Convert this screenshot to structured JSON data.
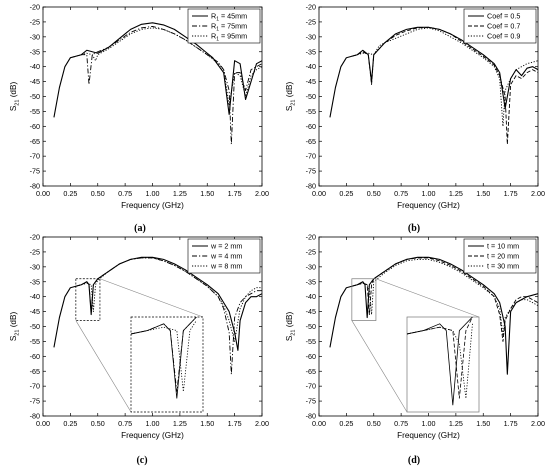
{
  "chart_data": [
    {
      "type": "line",
      "panel_label": "(a)",
      "xlabel": "Frequency (GHz)",
      "ylabel": "S21 (dB)",
      "xlim": [
        0.0,
        2.0
      ],
      "ylim": [
        -80,
        -20
      ],
      "xticks": [
        "0.00",
        "0.25",
        "0.50",
        "0.75",
        "1.00",
        "1.25",
        "1.50",
        "1.75",
        "2.00"
      ],
      "yticks": [
        "-20",
        "-25",
        "-30",
        "-35",
        "-40",
        "-45",
        "-50",
        "-55",
        "-60",
        "-65",
        "-70",
        "-75",
        "-80"
      ],
      "legend_position": "top-right",
      "series": [
        {
          "name": "R1 = 45mm",
          "style": "solid",
          "x": [
            0.1,
            0.15,
            0.2,
            0.25,
            0.3,
            0.35,
            0.4,
            0.45,
            0.5,
            0.6,
            0.7,
            0.8,
            0.9,
            1.0,
            1.1,
            1.2,
            1.3,
            1.4,
            1.5,
            1.55,
            1.6,
            1.65,
            1.7,
            1.75,
            1.8,
            1.85,
            1.9,
            1.95,
            2.0
          ],
          "y": [
            -57,
            -47,
            -40,
            -37,
            -36.5,
            -36,
            -34.5,
            -35,
            -35.5,
            -33.5,
            -30.5,
            -27.5,
            -25.8,
            -25.3,
            -26,
            -27.5,
            -30,
            -32.5,
            -35.5,
            -37,
            -39.5,
            -42,
            -56,
            -38,
            -39,
            -51,
            -45,
            -39,
            -38
          ]
        },
        {
          "name": "R1 = 75mm",
          "style": "dash-dot",
          "x": [
            0.25,
            0.3,
            0.35,
            0.4,
            0.42,
            0.45,
            0.5,
            0.6,
            0.7,
            0.8,
            0.9,
            1.0,
            1.1,
            1.2,
            1.3,
            1.4,
            1.5,
            1.6,
            1.65,
            1.7,
            1.72,
            1.75,
            1.8,
            1.85,
            1.9,
            1.95,
            2.0
          ],
          "y": [
            -37,
            -36.5,
            -36,
            -36,
            -46,
            -36,
            -35,
            -33.5,
            -31,
            -28.5,
            -27,
            -26.5,
            -27.5,
            -29,
            -31,
            -33.5,
            -36,
            -38.5,
            -41,
            -48,
            -66,
            -42,
            -42,
            -48,
            -41,
            -40,
            -39
          ]
        },
        {
          "name": "R1 = 95mm",
          "style": "dot",
          "x": [
            0.25,
            0.3,
            0.35,
            0.4,
            0.45,
            0.48,
            0.5,
            0.55,
            0.6,
            0.7,
            0.8,
            0.9,
            1.0,
            1.1,
            1.2,
            1.3,
            1.4,
            1.5,
            1.6,
            1.65,
            1.7,
            1.75,
            1.8,
            1.85,
            1.9,
            1.95,
            2.0
          ],
          "y": [
            -37,
            -36.5,
            -36,
            -35.5,
            -36,
            -38,
            -36,
            -35,
            -34,
            -31.5,
            -29,
            -27.5,
            -27,
            -27.5,
            -29,
            -31,
            -33.5,
            -36,
            -39,
            -41,
            -53,
            -42,
            -43,
            -50,
            -43,
            -41,
            -40
          ]
        }
      ]
    },
    {
      "type": "line",
      "panel_label": "(b)",
      "xlabel": "Frequency (GHz)",
      "ylabel": "S21 (dB)",
      "xlim": [
        0.0,
        2.0
      ],
      "ylim": [
        -80,
        -20
      ],
      "xticks": [
        "0.00",
        "0.25",
        "0.50",
        "0.75",
        "1.00",
        "1.25",
        "1.50",
        "1.75",
        "2.00"
      ],
      "yticks": [
        "-20",
        "-25",
        "-30",
        "-35",
        "-40",
        "-45",
        "-50",
        "-55",
        "-60",
        "-65",
        "-70",
        "-75",
        "-80"
      ],
      "legend_position": "top-right",
      "series": [
        {
          "name": "Coef = 0.5",
          "style": "solid",
          "x": [
            0.1,
            0.15,
            0.2,
            0.25,
            0.3,
            0.35,
            0.4,
            0.45,
            0.48,
            0.5,
            0.6,
            0.7,
            0.8,
            0.9,
            1.0,
            1.1,
            1.2,
            1.3,
            1.4,
            1.5,
            1.6,
            1.65,
            1.7,
            1.75,
            1.8,
            1.85,
            1.9,
            1.95,
            2.0
          ],
          "y": [
            -57,
            -47,
            -40,
            -37,
            -36.5,
            -36,
            -34.5,
            -36,
            -45,
            -36,
            -32,
            -29,
            -27.5,
            -26.8,
            -26.8,
            -27.5,
            -29,
            -31,
            -33.5,
            -36,
            -39,
            -42,
            -54,
            -44,
            -41,
            -43,
            -40.5,
            -40,
            -41
          ]
        },
        {
          "name": "Coef = 0.7",
          "style": "dash",
          "x": [
            0.3,
            0.35,
            0.4,
            0.45,
            0.48,
            0.5,
            0.6,
            0.7,
            0.8,
            0.9,
            1.0,
            1.1,
            1.2,
            1.3,
            1.4,
            1.5,
            1.6,
            1.65,
            1.7,
            1.72,
            1.75,
            1.8,
            1.85,
            1.9,
            1.95,
            2.0
          ],
          "y": [
            -36.5,
            -36,
            -35,
            -36,
            -46,
            -36,
            -32,
            -29.5,
            -28,
            -27,
            -26.8,
            -27.5,
            -29,
            -31.5,
            -34,
            -36.5,
            -39.5,
            -43,
            -50,
            -66,
            -46,
            -43,
            -44,
            -42,
            -41,
            -42
          ]
        },
        {
          "name": "Coef = 0.9",
          "style": "dot",
          "x": [
            0.3,
            0.35,
            0.4,
            0.45,
            0.5,
            0.55,
            0.6,
            0.7,
            0.8,
            0.9,
            1.0,
            1.1,
            1.2,
            1.3,
            1.4,
            1.5,
            1.6,
            1.65,
            1.68,
            1.7,
            1.75,
            1.8,
            1.85,
            1.9,
            1.95,
            2.0
          ],
          "y": [
            -36.5,
            -36,
            -35.5,
            -35.5,
            -36,
            -33,
            -32,
            -30.5,
            -29,
            -27.5,
            -27,
            -28,
            -30,
            -32,
            -34.5,
            -37,
            -40,
            -44,
            -60,
            -48,
            -44,
            -41,
            -40,
            -39,
            -38.5,
            -38
          ]
        }
      ]
    },
    {
      "type": "line",
      "panel_label": "(c)",
      "xlabel": "Frequency (GHz)",
      "ylabel": "S21 (dB)",
      "xlim": [
        0.0,
        2.0
      ],
      "ylim": [
        -80,
        -20
      ],
      "xticks": [
        "0.00",
        "0.25",
        "0.50",
        "0.75",
        "1.00",
        "1.25",
        "1.50",
        "1.75",
        "2.00"
      ],
      "yticks": [
        "-20",
        "-25",
        "-30",
        "-35",
        "-40",
        "-45",
        "-50",
        "-55",
        "-60",
        "-65",
        "-70",
        "-75",
        "-80"
      ],
      "legend_position": "top-right",
      "inset": {
        "x_range": [
          0.3,
          0.52
        ],
        "y_range": [
          -48,
          -34
        ]
      },
      "series": [
        {
          "name": "w = 2 mm",
          "style": "solid",
          "x": [
            0.1,
            0.15,
            0.2,
            0.25,
            0.3,
            0.35,
            0.4,
            0.42,
            0.44,
            0.46,
            0.5,
            0.6,
            0.7,
            0.8,
            0.9,
            1.0,
            1.1,
            1.2,
            1.3,
            1.4,
            1.5,
            1.6,
            1.65,
            1.7,
            1.75,
            1.78,
            1.8,
            1.85,
            1.9,
            1.95,
            2.0
          ],
          "y": [
            -57,
            -47,
            -40,
            -37,
            -36.5,
            -36,
            -35,
            -36,
            -46,
            -36,
            -34,
            -31.5,
            -29,
            -27.5,
            -26.8,
            -26.8,
            -27.5,
            -29,
            -31,
            -33.5,
            -36,
            -39,
            -42,
            -45,
            -52,
            -58,
            -48,
            -42,
            -40,
            -40,
            -39
          ]
        },
        {
          "name": "w = 4 mm",
          "style": "dash-dot",
          "x": [
            0.3,
            0.35,
            0.4,
            0.42,
            0.44,
            0.46,
            0.5,
            0.6,
            0.7,
            0.8,
            0.9,
            1.0,
            1.1,
            1.2,
            1.3,
            1.4,
            1.5,
            1.6,
            1.65,
            1.7,
            1.72,
            1.75,
            1.8,
            1.85,
            1.9,
            1.95,
            2.0
          ],
          "y": [
            -36.5,
            -36,
            -35,
            -36,
            -45,
            -36,
            -34,
            -31.5,
            -29,
            -27.5,
            -27,
            -27,
            -28,
            -29.5,
            -31.5,
            -34,
            -36.5,
            -40,
            -44,
            -52,
            -66,
            -47,
            -42,
            -40,
            -39,
            -38,
            -38
          ]
        },
        {
          "name": "w = 8 mm",
          "style": "dot",
          "x": [
            0.3,
            0.35,
            0.4,
            0.44,
            0.46,
            0.48,
            0.5,
            0.6,
            0.7,
            0.8,
            0.9,
            1.0,
            1.1,
            1.2,
            1.3,
            1.4,
            1.5,
            1.6,
            1.65,
            1.7,
            1.75,
            1.8,
            1.85,
            1.9,
            1.95,
            2.0
          ],
          "y": [
            -36.5,
            -36,
            -35.5,
            -36,
            -45,
            -36,
            -34.5,
            -31.5,
            -29,
            -27.5,
            -27,
            -27,
            -28,
            -29.5,
            -31.5,
            -34,
            -36.5,
            -40,
            -43,
            -48,
            -55,
            -44,
            -40,
            -38,
            -37,
            -37
          ]
        }
      ]
    },
    {
      "type": "line",
      "panel_label": "(d)",
      "xlabel": "Frequency (GHz)",
      "ylabel": "S21 (dB)",
      "xlim": [
        0.0,
        2.0
      ],
      "ylim": [
        -80,
        -20
      ],
      "xticks": [
        "0.00",
        "0.25",
        "0.50",
        "0.75",
        "1.00",
        "1.25",
        "1.50",
        "1.75",
        "2.00"
      ],
      "yticks": [
        "-20",
        "-25",
        "-30",
        "-35",
        "-40",
        "-45",
        "-50",
        "-55",
        "-60",
        "-65",
        "-70",
        "-75",
        "-80"
      ],
      "legend_position": "top-right",
      "inset": {
        "x_range": [
          0.3,
          0.52
        ],
        "y_range": [
          -48,
          -34
        ]
      },
      "series": [
        {
          "name": "t = 10 mm",
          "style": "solid",
          "x": [
            0.1,
            0.15,
            0.2,
            0.25,
            0.3,
            0.35,
            0.4,
            0.42,
            0.44,
            0.46,
            0.5,
            0.6,
            0.7,
            0.8,
            0.9,
            1.0,
            1.1,
            1.2,
            1.3,
            1.4,
            1.5,
            1.6,
            1.65,
            1.7,
            1.72,
            1.75,
            1.8,
            1.85,
            1.9,
            1.95,
            2.0
          ],
          "y": [
            -57,
            -47,
            -40,
            -37,
            -36.5,
            -36,
            -35,
            -36,
            -47,
            -36,
            -34,
            -31.5,
            -29,
            -27.5,
            -26.8,
            -26.8,
            -27.5,
            -29,
            -31,
            -33.5,
            -36,
            -39,
            -42,
            -50,
            -66,
            -45,
            -42,
            -41,
            -40,
            -39.5,
            -39
          ]
        },
        {
          "name": "t = 20 mm",
          "style": "dash",
          "x": [
            0.3,
            0.35,
            0.4,
            0.44,
            0.46,
            0.48,
            0.5,
            0.6,
            0.7,
            0.8,
            0.9,
            1.0,
            1.1,
            1.2,
            1.3,
            1.4,
            1.5,
            1.6,
            1.65,
            1.68,
            1.7,
            1.75,
            1.8,
            1.85,
            1.9,
            1.95,
            2.0
          ],
          "y": [
            -36.5,
            -36,
            -35.5,
            -36,
            -46,
            -36,
            -34,
            -31.5,
            -29,
            -27.5,
            -27,
            -27,
            -28,
            -29.5,
            -31.5,
            -34,
            -36.5,
            -40,
            -46,
            -55,
            -48,
            -44,
            -41,
            -40,
            -40,
            -41,
            -42
          ]
        },
        {
          "name": "t = 30 mm",
          "style": "dot",
          "x": [
            0.3,
            0.35,
            0.4,
            0.44,
            0.46,
            0.48,
            0.5,
            0.6,
            0.7,
            0.8,
            0.9,
            1.0,
            1.1,
            1.2,
            1.3,
            1.4,
            1.5,
            1.6,
            1.65,
            1.68,
            1.7,
            1.75,
            1.8,
            1.85,
            1.9,
            1.95,
            2.0
          ],
          "y": [
            -36.5,
            -36,
            -35.5,
            -36,
            -38,
            -46,
            -35,
            -32,
            -29.5,
            -28,
            -27.5,
            -27.5,
            -28.5,
            -30,
            -32,
            -34.5,
            -37,
            -40,
            -44,
            -53,
            -47,
            -44,
            -42,
            -41,
            -41,
            -42,
            -43
          ]
        }
      ]
    }
  ]
}
